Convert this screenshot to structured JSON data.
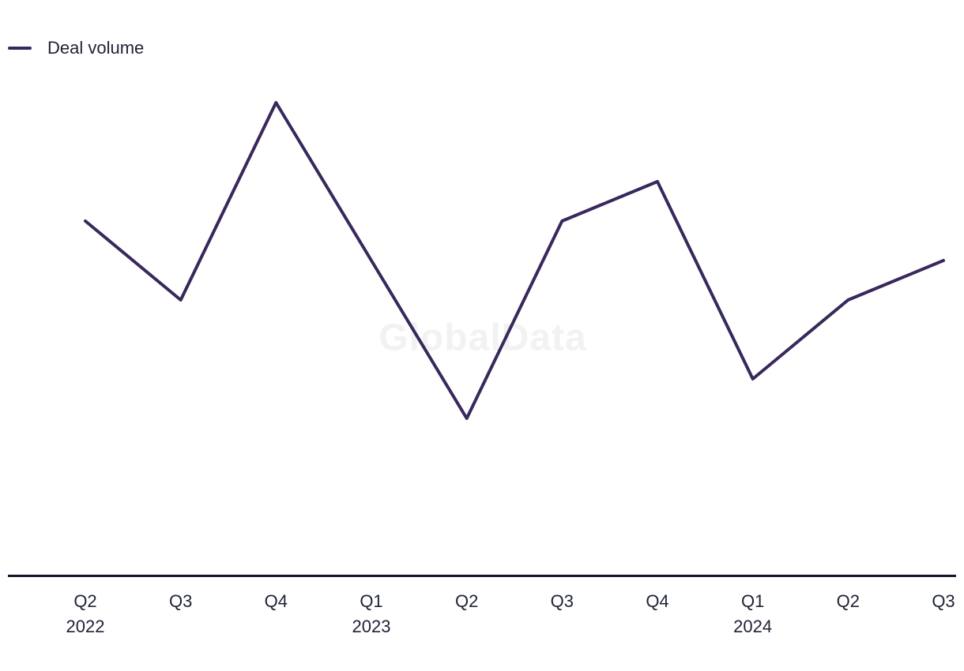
{
  "legend": {
    "label": "Deal volume"
  },
  "watermark": "GlobalData",
  "colors": {
    "series": "#38285c",
    "axis": "#14172b",
    "tick_text": "#1e2235",
    "watermark": "#f2f2f2",
    "background": "#ffffff"
  },
  "chart_data": {
    "type": "line",
    "title": "",
    "xlabel": "",
    "ylabel": "",
    "categories": [
      "Q2 2022",
      "Q3 2022",
      "Q4 2022",
      "Q1 2023",
      "Q2 2023",
      "Q3 2023",
      "Q4 2023",
      "Q1 2024",
      "Q2 2024",
      "Q3 2024"
    ],
    "x_tick_labels": [
      {
        "line1": "Q2",
        "line2": "2022"
      },
      {
        "line1": "Q3",
        "line2": ""
      },
      {
        "line1": "Q4",
        "line2": ""
      },
      {
        "line1": "Q1",
        "line2": "2023"
      },
      {
        "line1": "Q2",
        "line2": ""
      },
      {
        "line1": "Q3",
        "line2": ""
      },
      {
        "line1": "Q4",
        "line2": ""
      },
      {
        "line1": "Q1",
        "line2": "2024"
      },
      {
        "line1": "Q2",
        "line2": ""
      },
      {
        "line1": "Q3",
        "line2": ""
      }
    ],
    "series": [
      {
        "name": "Deal volume",
        "values": [
          450,
          350,
          600,
          400,
          200,
          450,
          500,
          250,
          350,
          400
        ],
        "color": "#38285c"
      }
    ],
    "values_note": "relative units estimated from pixel heights; y-axis not shown in chart",
    "ylim": [
      0,
      640
    ],
    "y_axis_visible": false,
    "gridlines": false,
    "legend_position": "top-left"
  }
}
